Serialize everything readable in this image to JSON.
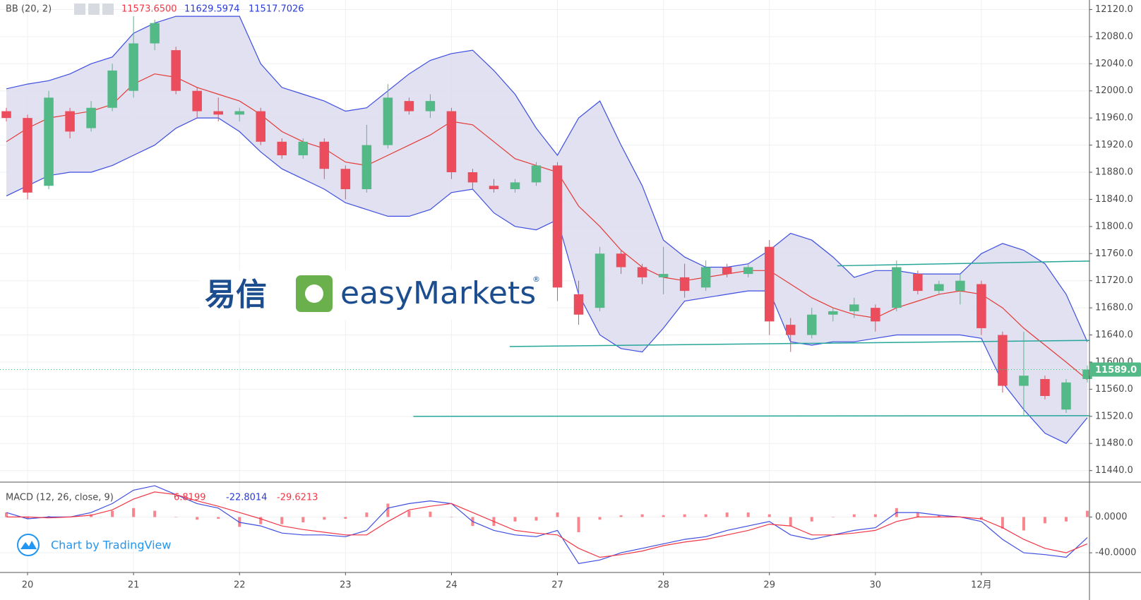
{
  "chart_data": [
    {
      "type": "candlestick",
      "title": "BB (20, 2)",
      "readouts": [
        {
          "text": "11573.6500",
          "color": "#f23645"
        },
        {
          "text": "11629.5974",
          "color": "#2a3bd8"
        },
        {
          "text": "11517.7026",
          "color": "#2a3bd8"
        }
      ],
      "xlim": [
        -0.26,
        10.02
      ],
      "xticks": [
        {
          "value": 0,
          "label": "20"
        },
        {
          "value": 1,
          "label": "21"
        },
        {
          "value": 2,
          "label": "22"
        },
        {
          "value": 3,
          "label": "23"
        },
        {
          "value": 4,
          "label": "24"
        },
        {
          "value": 5,
          "label": "27"
        },
        {
          "value": 6,
          "label": "28"
        },
        {
          "value": 7,
          "label": "29"
        },
        {
          "value": 8,
          "label": "30"
        },
        {
          "value": 9,
          "label": "12月"
        }
      ],
      "ylim": [
        11423,
        12134
      ],
      "yticks": [
        {
          "value": 11440,
          "label": "11440.0"
        },
        {
          "value": 11480,
          "label": "11480.0"
        },
        {
          "value": 11520,
          "label": "11520.0"
        },
        {
          "value": 11560,
          "label": "11560.0"
        },
        {
          "value": 11600,
          "label": "11600.0"
        },
        {
          "value": 11640,
          "label": "11640.0"
        },
        {
          "value": 11680,
          "label": "11680.0"
        },
        {
          "value": 11720,
          "label": "11720.0"
        },
        {
          "value": 11760,
          "label": "11760.0"
        },
        {
          "value": 11800,
          "label": "11800.0"
        },
        {
          "value": 11840,
          "label": "11840.0"
        },
        {
          "value": 11880,
          "label": "11880.0"
        },
        {
          "value": 11920,
          "label": "11920.0"
        },
        {
          "value": 11960,
          "label": "11960.0"
        },
        {
          "value": 12000,
          "label": "12000.0"
        },
        {
          "value": 12040,
          "label": "12040.0"
        },
        {
          "value": 12080,
          "label": "12080.0"
        },
        {
          "value": 12120,
          "label": "12120.0"
        }
      ],
      "grid": true,
      "up_color": "#53b987",
      "down_color": "#eb4d5c",
      "x": [
        -0.2,
        0,
        0.2,
        0.4,
        0.6,
        0.8,
        1,
        1.2,
        1.4,
        1.6,
        1.8,
        2,
        2.2,
        2.4,
        2.6,
        2.8,
        3,
        3.2,
        3.4,
        3.6,
        3.8,
        4,
        4.2,
        4.4,
        4.6,
        4.8,
        5,
        5.2,
        5.4,
        5.6,
        5.8,
        6,
        6.2,
        6.4,
        6.6,
        6.8,
        7,
        7.2,
        7.4,
        7.6,
        7.8,
        8,
        8.2,
        8.4,
        8.6,
        8.8,
        9,
        9.2,
        9.4,
        9.6,
        9.8,
        10
      ],
      "open": [
        11970,
        11960,
        11860,
        11970,
        11945,
        11975,
        12000,
        12070,
        12060,
        12000,
        11970,
        11965,
        11970,
        11925,
        11905,
        11925,
        11885,
        11855,
        11920,
        11985,
        11970,
        11970,
        11880,
        11860,
        11855,
        11865,
        11890,
        11700,
        11680,
        11760,
        11740,
        11725,
        11725,
        11710,
        11740,
        11730,
        11770,
        11655,
        11640,
        11670,
        11675,
        11680,
        11680,
        11730,
        11705,
        11705,
        11715,
        11640,
        11565,
        11575,
        11530,
        11575
      ],
      "high": [
        11975,
        11965,
        12000,
        11975,
        11985,
        12040,
        12110,
        12105,
        12065,
        12005,
        11990,
        11975,
        11975,
        11930,
        11930,
        11930,
        11890,
        11950,
        12010,
        11990,
        11995,
        11975,
        11885,
        11870,
        11870,
        11895,
        11895,
        11720,
        11770,
        11765,
        11745,
        11770,
        11745,
        11750,
        11745,
        11745,
        11780,
        11665,
        11680,
        11680,
        11695,
        11685,
        11750,
        11735,
        11720,
        11730,
        11720,
        11645,
        11645,
        11580,
        11575,
        11595
      ],
      "low": [
        11955,
        11840,
        11855,
        11930,
        11940,
        11970,
        11990,
        12060,
        11995,
        11960,
        11955,
        11955,
        11920,
        11900,
        11900,
        11870,
        11840,
        11850,
        11915,
        11965,
        11960,
        11870,
        11855,
        11850,
        11850,
        11860,
        11690,
        11655,
        11675,
        11730,
        11715,
        11700,
        11695,
        11705,
        11725,
        11725,
        11640,
        11615,
        11635,
        11660,
        11665,
        11645,
        11675,
        11700,
        11700,
        11685,
        11640,
        11555,
        11520,
        11545,
        11525,
        11570
      ],
      "close": [
        11960,
        11850,
        11990,
        11940,
        11975,
        12030,
        12070,
        12100,
        12000,
        11970,
        11965,
        11970,
        11925,
        11905,
        11925,
        11885,
        11855,
        11920,
        11990,
        11970,
        11985,
        11880,
        11865,
        11855,
        11865,
        11890,
        11710,
        11670,
        11760,
        11740,
        11725,
        11730,
        11705,
        11740,
        11730,
        11740,
        11660,
        11640,
        11670,
        11675,
        11685,
        11660,
        11740,
        11705,
        11715,
        11720,
        11650,
        11565,
        11580,
        11550,
        11570,
        11589
      ],
      "bands": {
        "line_color": "#3d4ee0",
        "basis_color": "#e53935",
        "fill_color": "#dcdcef",
        "upper": [
          12003,
          12010,
          12015,
          12025,
          12040,
          12050,
          12085,
          12100,
          12110,
          12110,
          12110,
          12110,
          12040,
          12005,
          11995,
          11985,
          11970,
          11975,
          12000,
          12025,
          12045,
          12055,
          12060,
          12030,
          11995,
          11945,
          11905,
          11960,
          11985,
          11920,
          11860,
          11780,
          11755,
          11740,
          11740,
          11745,
          11765,
          11790,
          11780,
          11755,
          11725,
          11735,
          11735,
          11730,
          11730,
          11730,
          11760,
          11775,
          11765,
          11745,
          11700,
          11630
        ],
        "basis": [
          11925,
          11945,
          11960,
          11965,
          11970,
          11980,
          12010,
          12025,
          12020,
          12005,
          11995,
          11985,
          11965,
          11940,
          11925,
          11915,
          11895,
          11890,
          11905,
          11920,
          11935,
          11955,
          11950,
          11925,
          11900,
          11890,
          11880,
          11830,
          11800,
          11765,
          11740,
          11725,
          11720,
          11725,
          11730,
          11735,
          11735,
          11715,
          11695,
          11680,
          11670,
          11665,
          11680,
          11690,
          11700,
          11705,
          11700,
          11680,
          11650,
          11625,
          11600,
          11574
        ],
        "lower": [
          11845,
          11860,
          11875,
          11880,
          11880,
          11890,
          11905,
          11920,
          11945,
          11960,
          11960,
          11940,
          11910,
          11885,
          11870,
          11855,
          11835,
          11825,
          11815,
          11815,
          11825,
          11850,
          11855,
          11820,
          11800,
          11795,
          11810,
          11700,
          11640,
          11620,
          11615,
          11650,
          11690,
          11695,
          11700,
          11705,
          11705,
          11630,
          11625,
          11630,
          11630,
          11635,
          11640,
          11640,
          11640,
          11640,
          11635,
          11570,
          11530,
          11495,
          11480,
          11518
        ]
      },
      "trendlines": {
        "color": "#26a69a",
        "lines": [
          {
            "x": [
              4.55,
              10.02
            ],
            "y": [
              11623,
              11632
            ]
          },
          {
            "x": [
              3.64,
              10.02
            ],
            "y": [
              11520,
              11521
            ]
          },
          {
            "x": [
              7.64,
              10.02
            ],
            "y": [
              11742,
              11749
            ]
          }
        ]
      },
      "last_price": {
        "value": 11589,
        "label": "11589.0",
        "color": "#53b987"
      }
    },
    {
      "type": "macd",
      "title": "MACD (12, 26, close, 9)",
      "readouts": [
        {
          "text": "6.8199",
          "color": "#f23645"
        },
        {
          "text": "-22.8014",
          "color": "#2a3bd8"
        },
        {
          "text": "-29.6213",
          "color": "#f23645"
        }
      ],
      "xlim": [
        -0.26,
        10.02
      ],
      "ylim": [
        -62,
        39
      ],
      "yticks": [
        {
          "value": 0,
          "label": "0.0000"
        },
        {
          "value": -40,
          "label": "-40.0000"
        }
      ],
      "grid": true,
      "x": [
        -0.2,
        0,
        0.2,
        0.4,
        0.6,
        0.8,
        1,
        1.2,
        1.4,
        1.6,
        1.8,
        2,
        2.2,
        2.4,
        2.6,
        2.8,
        3,
        3.2,
        3.4,
        3.6,
        3.8,
        4,
        4.2,
        4.4,
        4.6,
        4.8,
        5,
        5.2,
        5.4,
        5.6,
        5.8,
        6,
        6.2,
        6.4,
        6.6,
        6.8,
        7,
        7.2,
        7.4,
        7.6,
        7.8,
        8,
        8.2,
        8.4,
        8.6,
        8.8,
        9,
        9.2,
        9.4,
        9.6,
        9.8,
        10
      ],
      "histogram": {
        "color": "#f23645",
        "values": [
          5,
          -2,
          1,
          0,
          3,
          7,
          10,
          7,
          0,
          -3,
          -2,
          -11,
          -8,
          -8,
          -6,
          -3,
          -2,
          5,
          15,
          7,
          6,
          0,
          -10,
          -10,
          -5,
          -4,
          5,
          -17,
          -3,
          2,
          3,
          2,
          3,
          3,
          5,
          5,
          3,
          -10,
          -5,
          0,
          3,
          3,
          10,
          5,
          2,
          0,
          -3,
          -13,
          -15,
          -7,
          -5,
          7
        ]
      },
      "series": [
        {
          "color": "#3d4ee0",
          "values": [
            5,
            -2,
            0,
            0,
            5,
            15,
            30,
            35,
            25,
            15,
            10,
            -6,
            -10,
            -18,
            -20,
            -20,
            -22,
            -15,
            10,
            15,
            18,
            15,
            -5,
            -15,
            -20,
            -22,
            -15,
            -52,
            -48,
            -40,
            -35,
            -30,
            -25,
            -22,
            -15,
            -10,
            -5,
            -20,
            -25,
            -20,
            -15,
            -12,
            5,
            5,
            2,
            0,
            -5,
            -25,
            -40,
            -42,
            -45,
            -23
          ]
        },
        {
          "color": "#f23645",
          "values": [
            0,
            0,
            -1,
            0,
            2,
            8,
            20,
            28,
            25,
            18,
            12,
            5,
            -2,
            -10,
            -14,
            -17,
            -20,
            -20,
            -5,
            8,
            12,
            15,
            5,
            -5,
            -15,
            -18,
            -20,
            -35,
            -45,
            -42,
            -38,
            -32,
            -28,
            -25,
            -20,
            -15,
            -8,
            -10,
            -20,
            -20,
            -18,
            -15,
            -5,
            0,
            0,
            0,
            -2,
            -12,
            -25,
            -35,
            -40,
            -30
          ]
        }
      ]
    }
  ],
  "watermark": {
    "cn": "易信",
    "brand": "easyMarkets",
    "mark": "®"
  },
  "footer": {
    "attribution": "Chart by TradingView"
  }
}
